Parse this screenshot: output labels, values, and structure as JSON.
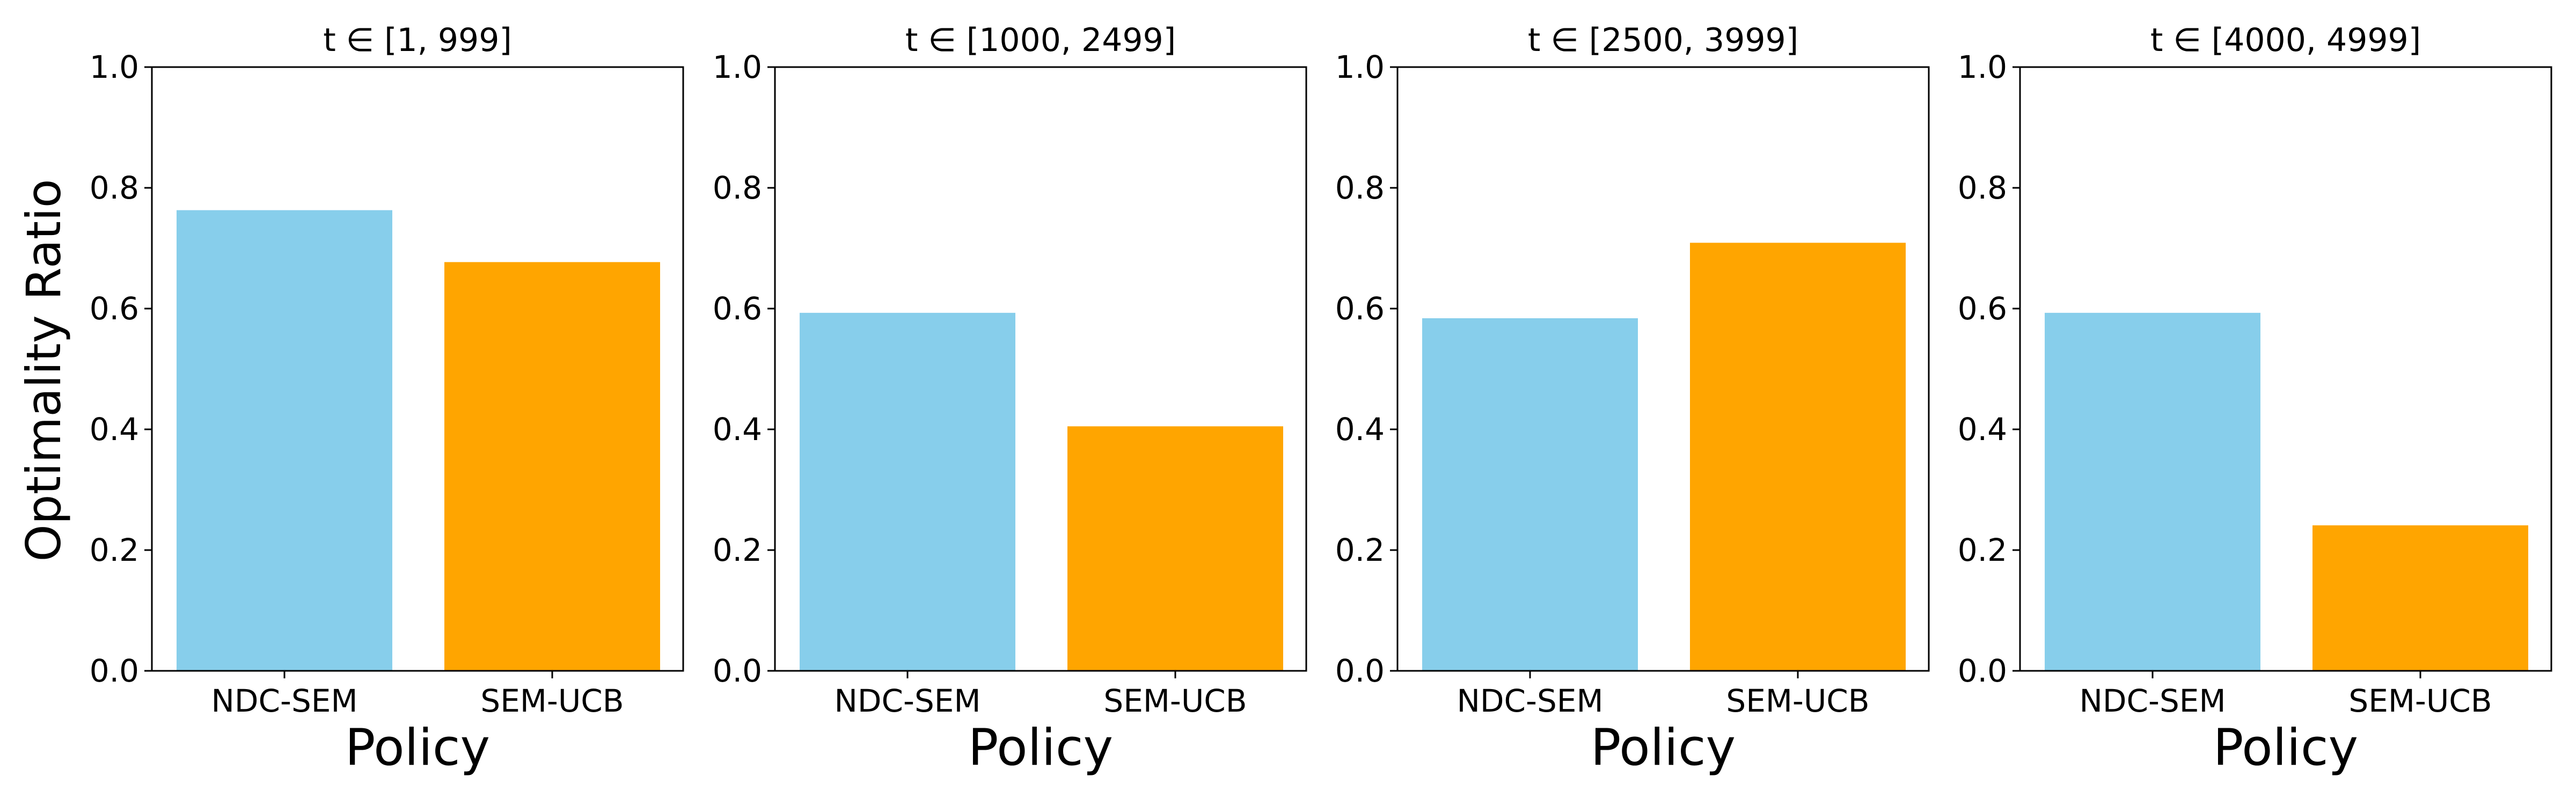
{
  "figure": {
    "ylabel": "Optimality Ratio",
    "colors": {
      "NDC-SEM": "#87CEEB",
      "SEM-UCB": "#FFA500"
    }
  },
  "chart_data": [
    {
      "type": "bar",
      "title": "t ∈ [1, 999]",
      "xlabel": "Policy",
      "ylabel": "Optimality Ratio",
      "categories": [
        "NDC-SEM",
        "SEM-UCB"
      ],
      "values": [
        0.763,
        0.677
      ],
      "ylim": [
        0,
        1.0
      ],
      "yticks": [
        "0.0",
        "0.2",
        "0.4",
        "0.6",
        "0.8",
        "1.0"
      ],
      "grid": false
    },
    {
      "type": "bar",
      "title": "t ∈ [1000, 2499]",
      "xlabel": "Policy",
      "categories": [
        "NDC-SEM",
        "SEM-UCB"
      ],
      "values": [
        0.593,
        0.405
      ],
      "ylim": [
        0,
        1.0
      ],
      "yticks": [
        "0.0",
        "0.2",
        "0.4",
        "0.6",
        "0.8",
        "1.0"
      ],
      "grid": false
    },
    {
      "type": "bar",
      "title": "t ∈ [2500, 3999]",
      "xlabel": "Policy",
      "categories": [
        "NDC-SEM",
        "SEM-UCB"
      ],
      "values": [
        0.584,
        0.709
      ],
      "ylim": [
        0,
        1.0
      ],
      "yticks": [
        "0.0",
        "0.2",
        "0.4",
        "0.6",
        "0.8",
        "1.0"
      ],
      "grid": false
    },
    {
      "type": "bar",
      "title": "t ∈ [4000, 4999]",
      "xlabel": "Policy",
      "categories": [
        "NDC-SEM",
        "SEM-UCB"
      ],
      "values": [
        0.593,
        0.241
      ],
      "ylim": [
        0,
        1.0
      ],
      "yticks": [
        "0.0",
        "0.2",
        "0.4",
        "0.6",
        "0.8",
        "1.0"
      ],
      "grid": false
    }
  ]
}
